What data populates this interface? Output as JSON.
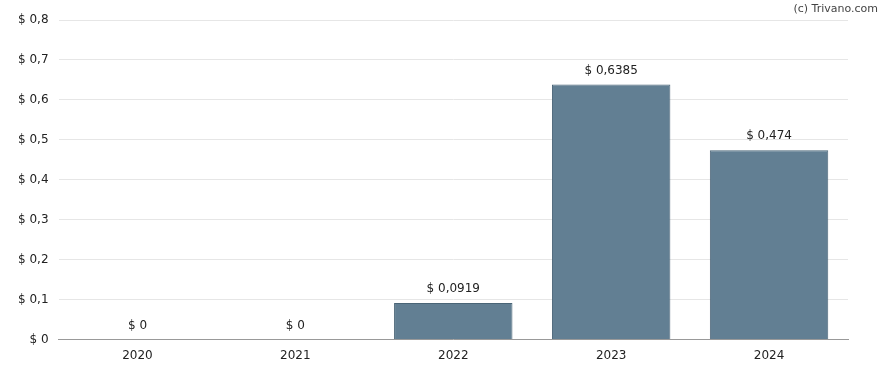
{
  "chart_data": {
    "type": "bar",
    "annotations": [
      "(c) Trivano.com"
    ],
    "categories": [
      "2020",
      "2021",
      "2022",
      "2023",
      "2024"
    ],
    "values": [
      0,
      0,
      0.0919,
      0.6385,
      0.474
    ],
    "value_labels": [
      "$ 0",
      "$ 0",
      "$ 0,0919",
      "$ 0,6385",
      "$ 0,474"
    ],
    "data_labels": true,
    "color": "#627f93",
    "ylim": [
      0,
      0.8
    ],
    "yticks": [
      {
        "value": 0,
        "label": "$ 0"
      },
      {
        "value": 0.1,
        "label": "$ 0,1"
      },
      {
        "value": 0.2,
        "label": "$ 0,2"
      },
      {
        "value": 0.3,
        "label": "$ 0,3"
      },
      {
        "value": 0.4,
        "label": "$ 0,4"
      },
      {
        "value": 0.5,
        "label": "$ 0,5"
      },
      {
        "value": 0.6,
        "label": "$ 0,6"
      },
      {
        "value": 0.7,
        "label": "$ 0,7"
      },
      {
        "value": 0.8,
        "label": "$ 0,8"
      }
    ],
    "grid": true
  }
}
